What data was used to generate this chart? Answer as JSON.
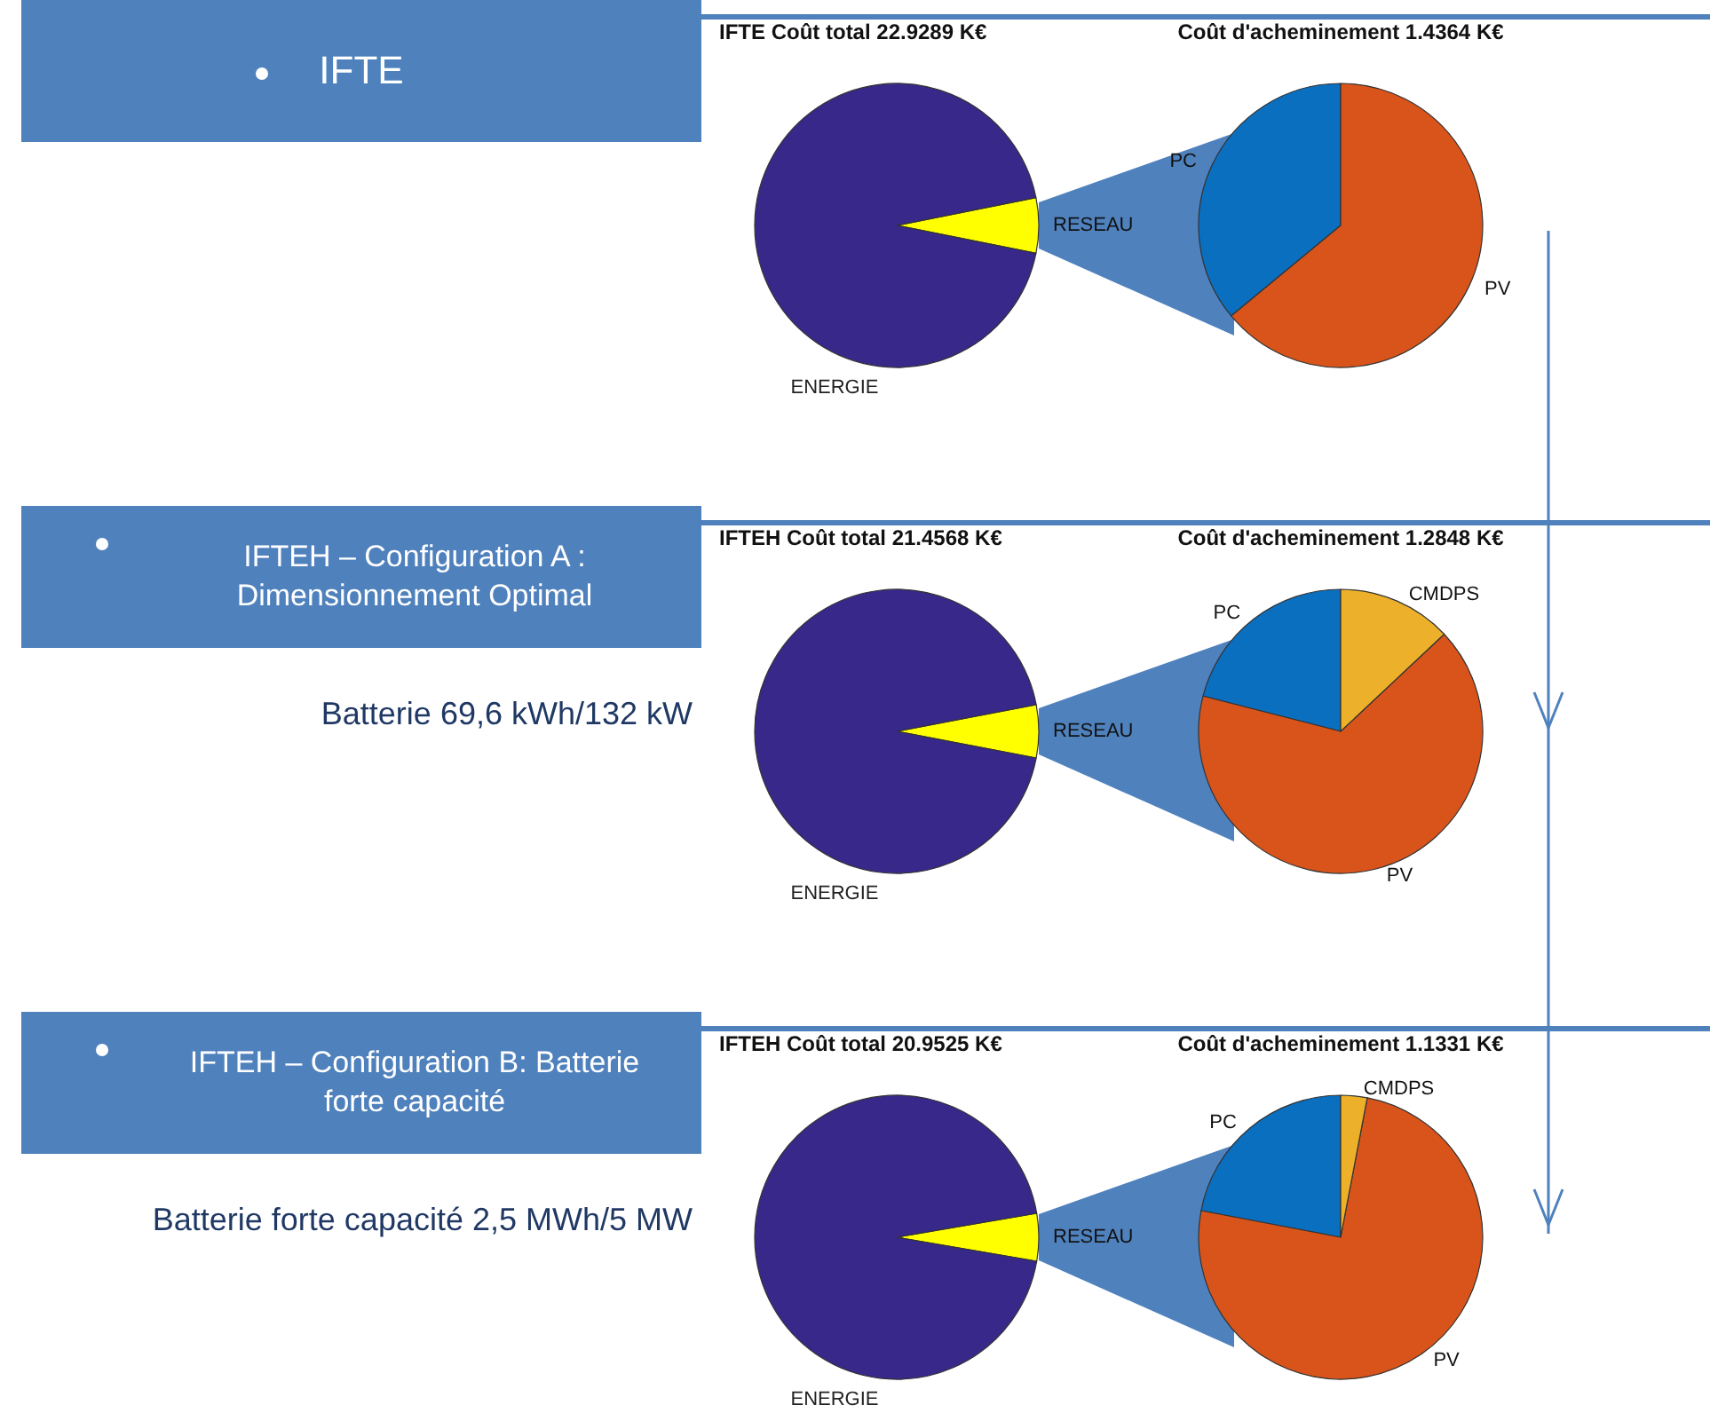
{
  "chart_data": [
    {
      "type": "pie",
      "title": "IFTE Coût total 22.9289 K€",
      "categories": [
        "RESEAU",
        "ENERGIE"
      ],
      "values": [
        6.3,
        93.7
      ],
      "colors": [
        "#ffff00",
        "#37288a"
      ],
      "annotations": [
        "IFTE"
      ]
    },
    {
      "type": "pie",
      "title": "Coût d'acheminement 1.4364 K€",
      "categories": [
        "PC",
        "PV"
      ],
      "values": [
        36,
        64
      ],
      "colors": [
        "#0a6fbf",
        "#d9541a"
      ]
    },
    {
      "type": "pie",
      "title": "IFTEH Coût total 21.4568 K€",
      "categories": [
        "RESEAU",
        "ENERGIE"
      ],
      "values": [
        6.0,
        94.0
      ],
      "colors": [
        "#ffff00",
        "#37288a"
      ],
      "annotations": [
        "IFTEH – Configuration A : Dimensionnement Optimal",
        "Batterie 69,6 kWh/132 kW"
      ]
    },
    {
      "type": "pie",
      "title": "Coût d'acheminement 1.2848 K€",
      "categories": [
        "PC",
        "PV",
        "CMDPS"
      ],
      "values": [
        21,
        66,
        13
      ],
      "colors": [
        "#0a6fbf",
        "#d9541a",
        "#ecb02a"
      ]
    },
    {
      "type": "pie",
      "title": "IFTEH Coût total 20.9525 K€",
      "categories": [
        "RESEAU",
        "ENERGIE"
      ],
      "values": [
        5.4,
        94.6
      ],
      "colors": [
        "#ffff00",
        "#37288a"
      ],
      "annotations": [
        "IFTEH – Configuration B: Batterie forte capacité",
        "Batterie forte capacité 2,5 MWh/5 MW"
      ]
    },
    {
      "type": "pie",
      "title": "Coût d'acheminement 1.1331 K€",
      "categories": [
        "PC",
        "PV",
        "CMDPS"
      ],
      "values": [
        22,
        75,
        3
      ],
      "colors": [
        "#0a6fbf",
        "#d9541a",
        "#ecb02a"
      ]
    }
  ]
}
